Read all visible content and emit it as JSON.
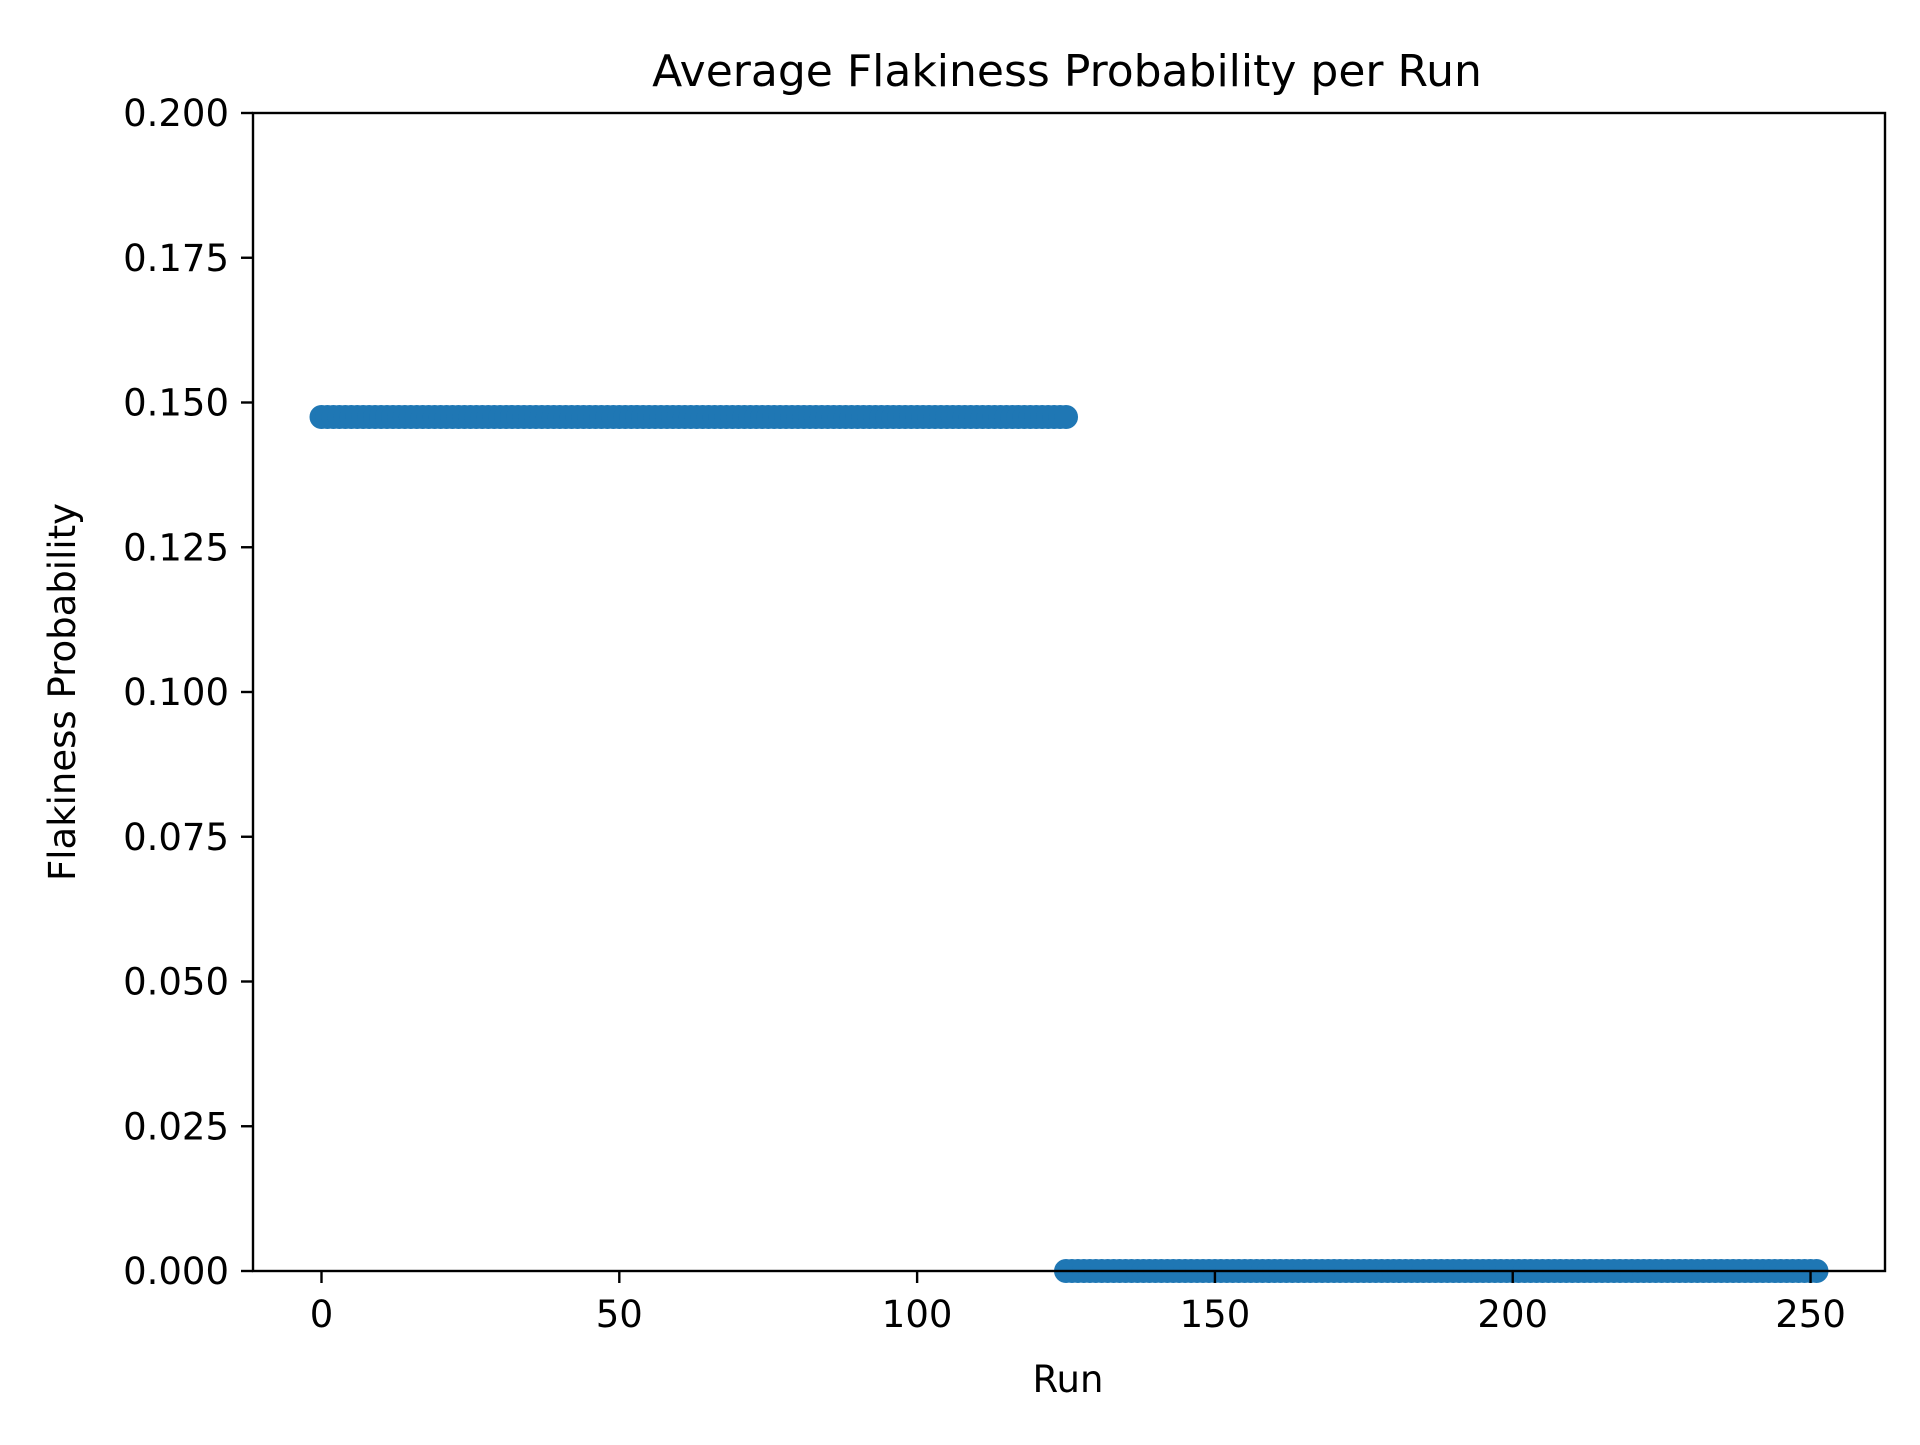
{
  "chart_data": {
    "type": "scatter",
    "title": "Average Flakiness Probability per Run",
    "xlabel": "Run",
    "ylabel": "Flakiness Probability",
    "xlim": [
      -11.5,
      262.5
    ],
    "ylim": [
      0,
      0.2
    ],
    "x_ticks": [
      0,
      50,
      100,
      150,
      200,
      250
    ],
    "y_ticks": [
      0,
      0.025,
      0.05,
      0.075,
      0.1,
      0.125,
      0.15,
      0.175,
      0.2
    ],
    "x_tick_labels": [
      "0",
      "50",
      "100",
      "150",
      "200",
      "250"
    ],
    "y_tick_labels": [
      "0.000",
      "0.025",
      "0.050",
      "0.075",
      "0.100",
      "0.125",
      "0.150",
      "0.175",
      "0.200"
    ],
    "grid": false,
    "legend": "none",
    "marker_color": "#1f77b4",
    "segments": [
      {
        "x_start": 0,
        "x_end": 125,
        "value": 0.1475
      },
      {
        "x_start": 125,
        "x_end": 251,
        "value": 0.0
      }
    ]
  }
}
